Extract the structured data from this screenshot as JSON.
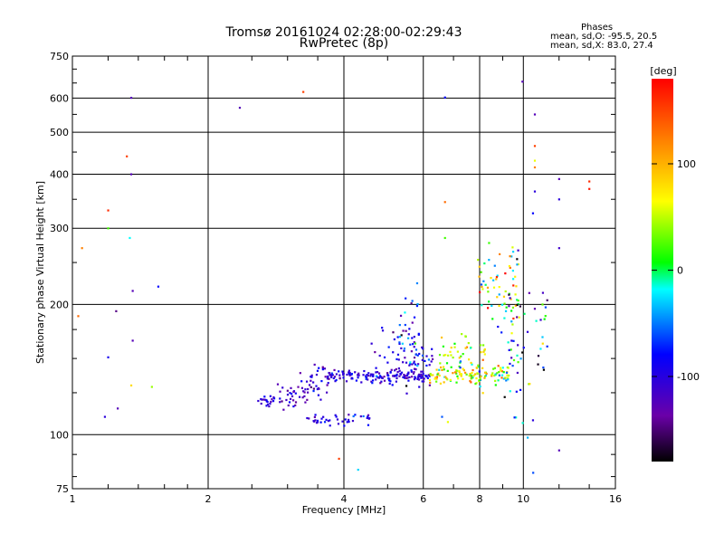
{
  "chart_data": {
    "type": "scatter",
    "title": "Tromsø 20161024 02:28:00-02:29:43",
    "subtitle": "RwPretec (8p)",
    "xlabel": "Frequency [MHz]",
    "ylabel": "Stationary phase Virtual Height [km]",
    "x_scale": "log",
    "y_scale": "log",
    "xlim": [
      1,
      16
    ],
    "ylim": [
      75,
      750
    ],
    "x_ticks": [
      1,
      2,
      4,
      6,
      8,
      10,
      16
    ],
    "x_tick_labels": [
      "1",
      "2",
      "4",
      "6",
      "8",
      "10",
      "16"
    ],
    "y_ticks": [
      75,
      100,
      200,
      300,
      400,
      500,
      600,
      750
    ],
    "y_tick_labels": [
      "75",
      "100",
      "200",
      "300",
      "400",
      "500",
      "600",
      "750"
    ],
    "grid": true,
    "stats": {
      "heading": "Phases",
      "line1": "mean, sd,O: -95.5, 20.5",
      "line2": "mean, sd,X:  83.0, 27.4"
    },
    "colorbar": {
      "label": "[deg]",
      "range": [
        -180,
        180
      ],
      "ticks": [
        100,
        0,
        -100
      ],
      "tick_labels": [
        "100",
        "0",
        "-100"
      ]
    },
    "clusters": [
      {
        "name": "low-trace",
        "x_range": [
          2.55,
          2.85
        ],
        "y_center": 120,
        "y_spread": 2,
        "phase": -100,
        "phase_sd": 15,
        "count": 20
      },
      {
        "name": "rising-trace",
        "x_range": [
          2.85,
          3.7
        ],
        "y_center": 127,
        "y_slope": 18,
        "y_spread": 6,
        "phase": -110,
        "phase_sd": 20,
        "count": 70
      },
      {
        "name": "o-trace-main",
        "x_range": [
          3.7,
          6.2
        ],
        "y_center": 137,
        "y_spread": 2,
        "phase": -100,
        "phase_sd": 15,
        "count": 150
      },
      {
        "name": "o-trace-upper",
        "x_range": [
          4.6,
          6.3
        ],
        "y_center": 150,
        "y_spread": 10,
        "phase": -95,
        "phase_sd": 20,
        "count": 60
      },
      {
        "name": "lower-trace",
        "x_range": [
          3.3,
          4.6
        ],
        "y_center": 108,
        "y_spread": 2,
        "phase": -100,
        "phase_sd": 15,
        "count": 40
      },
      {
        "name": "mid-spike",
        "x_range": [
          5.3,
          5.9
        ],
        "y_center": 175,
        "y_spread": 20,
        "phase": -80,
        "phase_sd": 40,
        "count": 40
      },
      {
        "name": "x-trace-main",
        "x_range": [
          6.2,
          9.3
        ],
        "y_center": 137,
        "y_spread": 3,
        "phase": 50,
        "phase_sd": 60,
        "count": 110
      },
      {
        "name": "x-trace-upper",
        "x_range": [
          6.5,
          8.3
        ],
        "y_center": 150,
        "y_spread": 12,
        "phase": 60,
        "phase_sd": 40,
        "count": 55
      },
      {
        "name": "f2-cusp",
        "x_range": [
          7.9,
          9.8
        ],
        "y_center": 220,
        "y_spread": 25,
        "phase": 30,
        "phase_sd": 70,
        "count": 70
      },
      {
        "name": "upper-scatter",
        "x_range": [
          9.0,
          11.3
        ],
        "y_center": 155,
        "y_spread": 30,
        "phase": -60,
        "phase_sd": 80,
        "count": 55
      }
    ],
    "outliers": [
      {
        "x": 1.35,
        "y": 601,
        "phase": -120
      },
      {
        "x": 2.35,
        "y": 570,
        "phase": -120
      },
      {
        "x": 3.25,
        "y": 620,
        "phase": 150
      },
      {
        "x": 6.7,
        "y": 602,
        "phase": -80
      },
      {
        "x": 9.95,
        "y": 655,
        "phase": -120
      },
      {
        "x": 1.32,
        "y": 440,
        "phase": 150
      },
      {
        "x": 1.35,
        "y": 400,
        "phase": -120
      },
      {
        "x": 1.2,
        "y": 330,
        "phase": 160
      },
      {
        "x": 1.05,
        "y": 270,
        "phase": 120
      },
      {
        "x": 1.2,
        "y": 300,
        "phase": 20
      },
      {
        "x": 1.34,
        "y": 285,
        "phase": -20
      },
      {
        "x": 1.36,
        "y": 215,
        "phase": -120
      },
      {
        "x": 1.55,
        "y": 220,
        "phase": -80
      },
      {
        "x": 1.25,
        "y": 193,
        "phase": -140
      },
      {
        "x": 1.03,
        "y": 188,
        "phase": 130
      },
      {
        "x": 1.36,
        "y": 165,
        "phase": -120
      },
      {
        "x": 1.2,
        "y": 151,
        "phase": -90
      },
      {
        "x": 1.35,
        "y": 130,
        "phase": 80
      },
      {
        "x": 1.5,
        "y": 129,
        "phase": 40
      },
      {
        "x": 1.26,
        "y": 115,
        "phase": -120
      },
      {
        "x": 1.18,
        "y": 110,
        "phase": -100
      },
      {
        "x": 6.7,
        "y": 345,
        "phase": 130
      },
      {
        "x": 6.7,
        "y": 285,
        "phase": 20
      },
      {
        "x": 10.6,
        "y": 550,
        "phase": -120
      },
      {
        "x": 10.6,
        "y": 465,
        "phase": 150
      },
      {
        "x": 10.6,
        "y": 430,
        "phase": 60
      },
      {
        "x": 10.6,
        "y": 415,
        "phase": 120
      },
      {
        "x": 10.6,
        "y": 365,
        "phase": -100
      },
      {
        "x": 10.5,
        "y": 325,
        "phase": -80
      },
      {
        "x": 12.0,
        "y": 390,
        "phase": -120
      },
      {
        "x": 12.0,
        "y": 350,
        "phase": -100
      },
      {
        "x": 14.0,
        "y": 385,
        "phase": 160
      },
      {
        "x": 14.0,
        "y": 370,
        "phase": 170
      },
      {
        "x": 12.0,
        "y": 270,
        "phase": -110
      },
      {
        "x": 12.0,
        "y": 92,
        "phase": -120
      },
      {
        "x": 10.5,
        "y": 108,
        "phase": -100
      },
      {
        "x": 3.9,
        "y": 88,
        "phase": 150
      },
      {
        "x": 4.3,
        "y": 83,
        "phase": -30
      },
      {
        "x": 6.6,
        "y": 110,
        "phase": -60
      },
      {
        "x": 6.8,
        "y": 107,
        "phase": 60
      }
    ]
  }
}
